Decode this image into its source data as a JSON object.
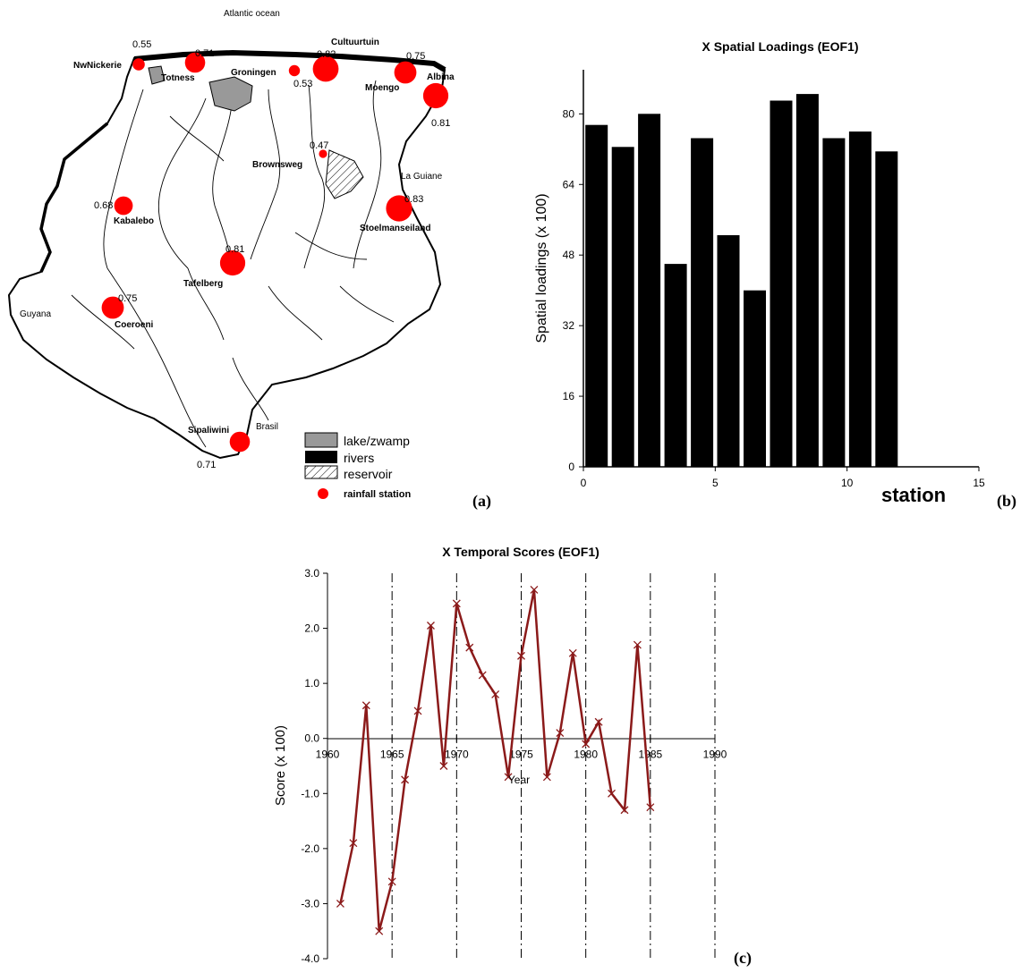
{
  "panels": {
    "a": "(a)",
    "b": "(b)",
    "c": "(c)"
  },
  "map": {
    "ocean": "Atlantic ocean",
    "regions": {
      "guyana": "Guyana",
      "brasil": "Brasil",
      "guiane": "La Guiane"
    },
    "stations": [
      {
        "name": "NwNickerie",
        "value": "0.55",
        "size": 0.55
      },
      {
        "name": "Totness",
        "value": "0.71",
        "size": 0.71
      },
      {
        "name": "Groningen",
        "value": "0.53",
        "size": 0.53
      },
      {
        "name": "Cultuurtuin",
        "value": "0.82",
        "size": 0.82
      },
      {
        "name": "Moengo",
        "value": "0.75",
        "size": 0.75
      },
      {
        "name": "Albina",
        "value": "0.81",
        "size": 0.81
      },
      {
        "name": "Brownsweg",
        "value": "0.47",
        "size": 0.47
      },
      {
        "name": "Kabalebo",
        "value": "0.68",
        "size": 0.68
      },
      {
        "name": "Stoelmanseiland",
        "value": "0.83",
        "size": 0.83
      },
      {
        "name": "Tafelberg",
        "value": "0.81",
        "size": 0.81
      },
      {
        "name": "Coeroeni",
        "value": "0.75",
        "size": 0.75
      },
      {
        "name": "Sipaliwini",
        "value": "0.71",
        "size": 0.71
      }
    ],
    "legend": {
      "lake": "lake/zwamp",
      "rivers": "rivers",
      "reservoir": "reservoir",
      "station": "rainfall station"
    },
    "colors": {
      "station": "#ff0000",
      "lake": "#999999",
      "river": "#000000"
    }
  },
  "chart_data": [
    {
      "type": "bar",
      "title": "X Spatial Loadings (EOF1)",
      "xlabel": "station",
      "ylabel": "Spatial loadings (x 100)",
      "x": [
        1,
        2,
        3,
        4,
        5,
        6,
        7,
        8,
        9,
        10,
        11,
        12
      ],
      "values": [
        77.5,
        72.5,
        80,
        46,
        74.5,
        52.5,
        40,
        83,
        84.5,
        74.5,
        76,
        71.5
      ],
      "xlim": [
        0,
        15
      ],
      "ylim": [
        0,
        90
      ],
      "xticks": [
        "0",
        "5",
        "10",
        "15"
      ],
      "yticks": [
        "0",
        "16",
        "32",
        "48",
        "64",
        "80"
      ],
      "grid": false,
      "color": "#000000"
    },
    {
      "type": "line",
      "title": "X Temporal Scores (EOF1)",
      "xlabel": "Year",
      "ylabel": "Score (x 100)",
      "x": [
        1961,
        1962,
        1963,
        1964,
        1965,
        1966,
        1967,
        1968,
        1969,
        1970,
        1971,
        1972,
        1973,
        1974,
        1975,
        1976,
        1977,
        1978,
        1979,
        1980,
        1981,
        1982,
        1983,
        1984,
        1985
      ],
      "values": [
        -3.0,
        -1.9,
        0.6,
        -3.5,
        -2.6,
        -0.75,
        0.5,
        2.05,
        -0.5,
        2.45,
        1.65,
        1.15,
        0.8,
        -0.7,
        1.5,
        2.7,
        -0.7,
        0.1,
        1.55,
        -0.1,
        0.3,
        -1.0,
        -1.3,
        1.7,
        -1.25
      ],
      "xlim": [
        1960,
        1990
      ],
      "ylim": [
        -4.0,
        3.0
      ],
      "xticks": [
        "1960",
        "1965",
        "1970",
        "1975",
        "1980",
        "1985",
        "1990"
      ],
      "yticks": [
        "3.0",
        "2.0",
        "1.0",
        "0.0",
        "-1.0",
        "-2.0",
        "-3.0",
        "-4.0"
      ],
      "vlines": [
        1965,
        1970,
        1975,
        1980,
        1985,
        1990
      ],
      "marker": "x",
      "color": "#8b1a1a"
    }
  ]
}
